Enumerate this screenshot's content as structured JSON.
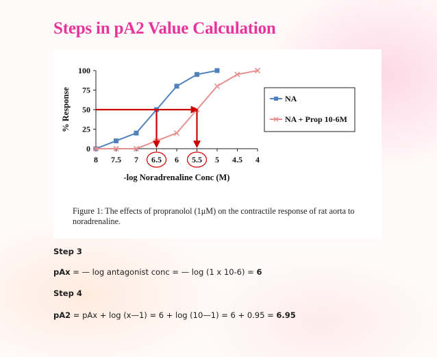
{
  "page": {
    "title": "Steps in pA2 Value Calculation"
  },
  "figure": {
    "caption": "Figure 1: The effects of propranolol (1μM) on the contractile response of rat aorta to noradrenaline."
  },
  "colors": {
    "title": "#e8339b",
    "na_series": "#4f81bd",
    "prop_series": "#e58f8f",
    "arrow": "#cc0000"
  },
  "chart_data": {
    "type": "line",
    "xlabel": "-log Noradrenaline Conc (M)",
    "ylabel": "% Response",
    "xlim": [
      8,
      4
    ],
    "x_reversed": true,
    "ylim": [
      0,
      100
    ],
    "x_ticks": [
      "8",
      "7.5",
      "7",
      "6.5",
      "6",
      "5.5",
      "5",
      "4.5",
      "4"
    ],
    "y_ticks": [
      "0",
      "25",
      "50",
      "75",
      "100"
    ],
    "grid": false,
    "legend_position": "right",
    "series": [
      {
        "name": "NA",
        "marker": "square",
        "color": "#4f81bd",
        "x": [
          8,
          7.5,
          7,
          6.5,
          6,
          5.5,
          5
        ],
        "y": [
          0,
          10,
          20,
          50,
          80,
          95,
          100
        ]
      },
      {
        "name": "NA + Prop 10-6M",
        "marker": "x",
        "color": "#e58f8f",
        "x": [
          8,
          7.5,
          7,
          6.5,
          6,
          5.5,
          5,
          4.5,
          4
        ],
        "y": [
          0,
          0,
          0,
          10,
          20,
          50,
          80,
          95,
          100
        ]
      }
    ],
    "annotations": {
      "response_level": 50,
      "ec50_na": 6.5,
      "ec50_na_prop": 5.5,
      "circled_ticks": [
        "6.5",
        "5.5"
      ]
    }
  },
  "steps": {
    "step3_label": "Step 3",
    "step3_term": "pAx",
    "step3_expr": " = — log antagonist conc = — log (1 x 10-6) = ",
    "step3_result": "6",
    "step4_label": "Step 4",
    "step4_term": "pA2",
    "step4_expr": " = pAx + log (x—1) = 6 + log (10—1) = 6 + 0.95 = ",
    "step4_result": "6.95"
  }
}
